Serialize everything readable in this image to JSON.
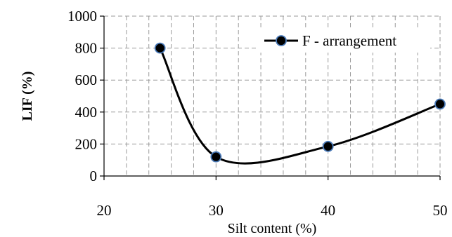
{
  "chart_data": {
    "type": "line",
    "title": "",
    "xlabel": "Silt content (%)",
    "ylabel": "LIF (%)",
    "xlim": [
      20,
      50
    ],
    "ylim": [
      0,
      1000
    ],
    "x_ticks": [
      "20",
      "30",
      "40",
      "50"
    ],
    "y_ticks": [
      "0",
      "200",
      "400",
      "600",
      "800",
      "1000"
    ],
    "grid": true,
    "legend": "top-right",
    "smoothed": true,
    "series": [
      {
        "name": "F - arrangement",
        "x": [
          25,
          30,
          40,
          50
        ],
        "y": [
          800,
          120,
          185,
          450
        ],
        "color": "#000000",
        "marker_fill": "#000000",
        "marker_edge": "#4a7ab8"
      }
    ]
  }
}
